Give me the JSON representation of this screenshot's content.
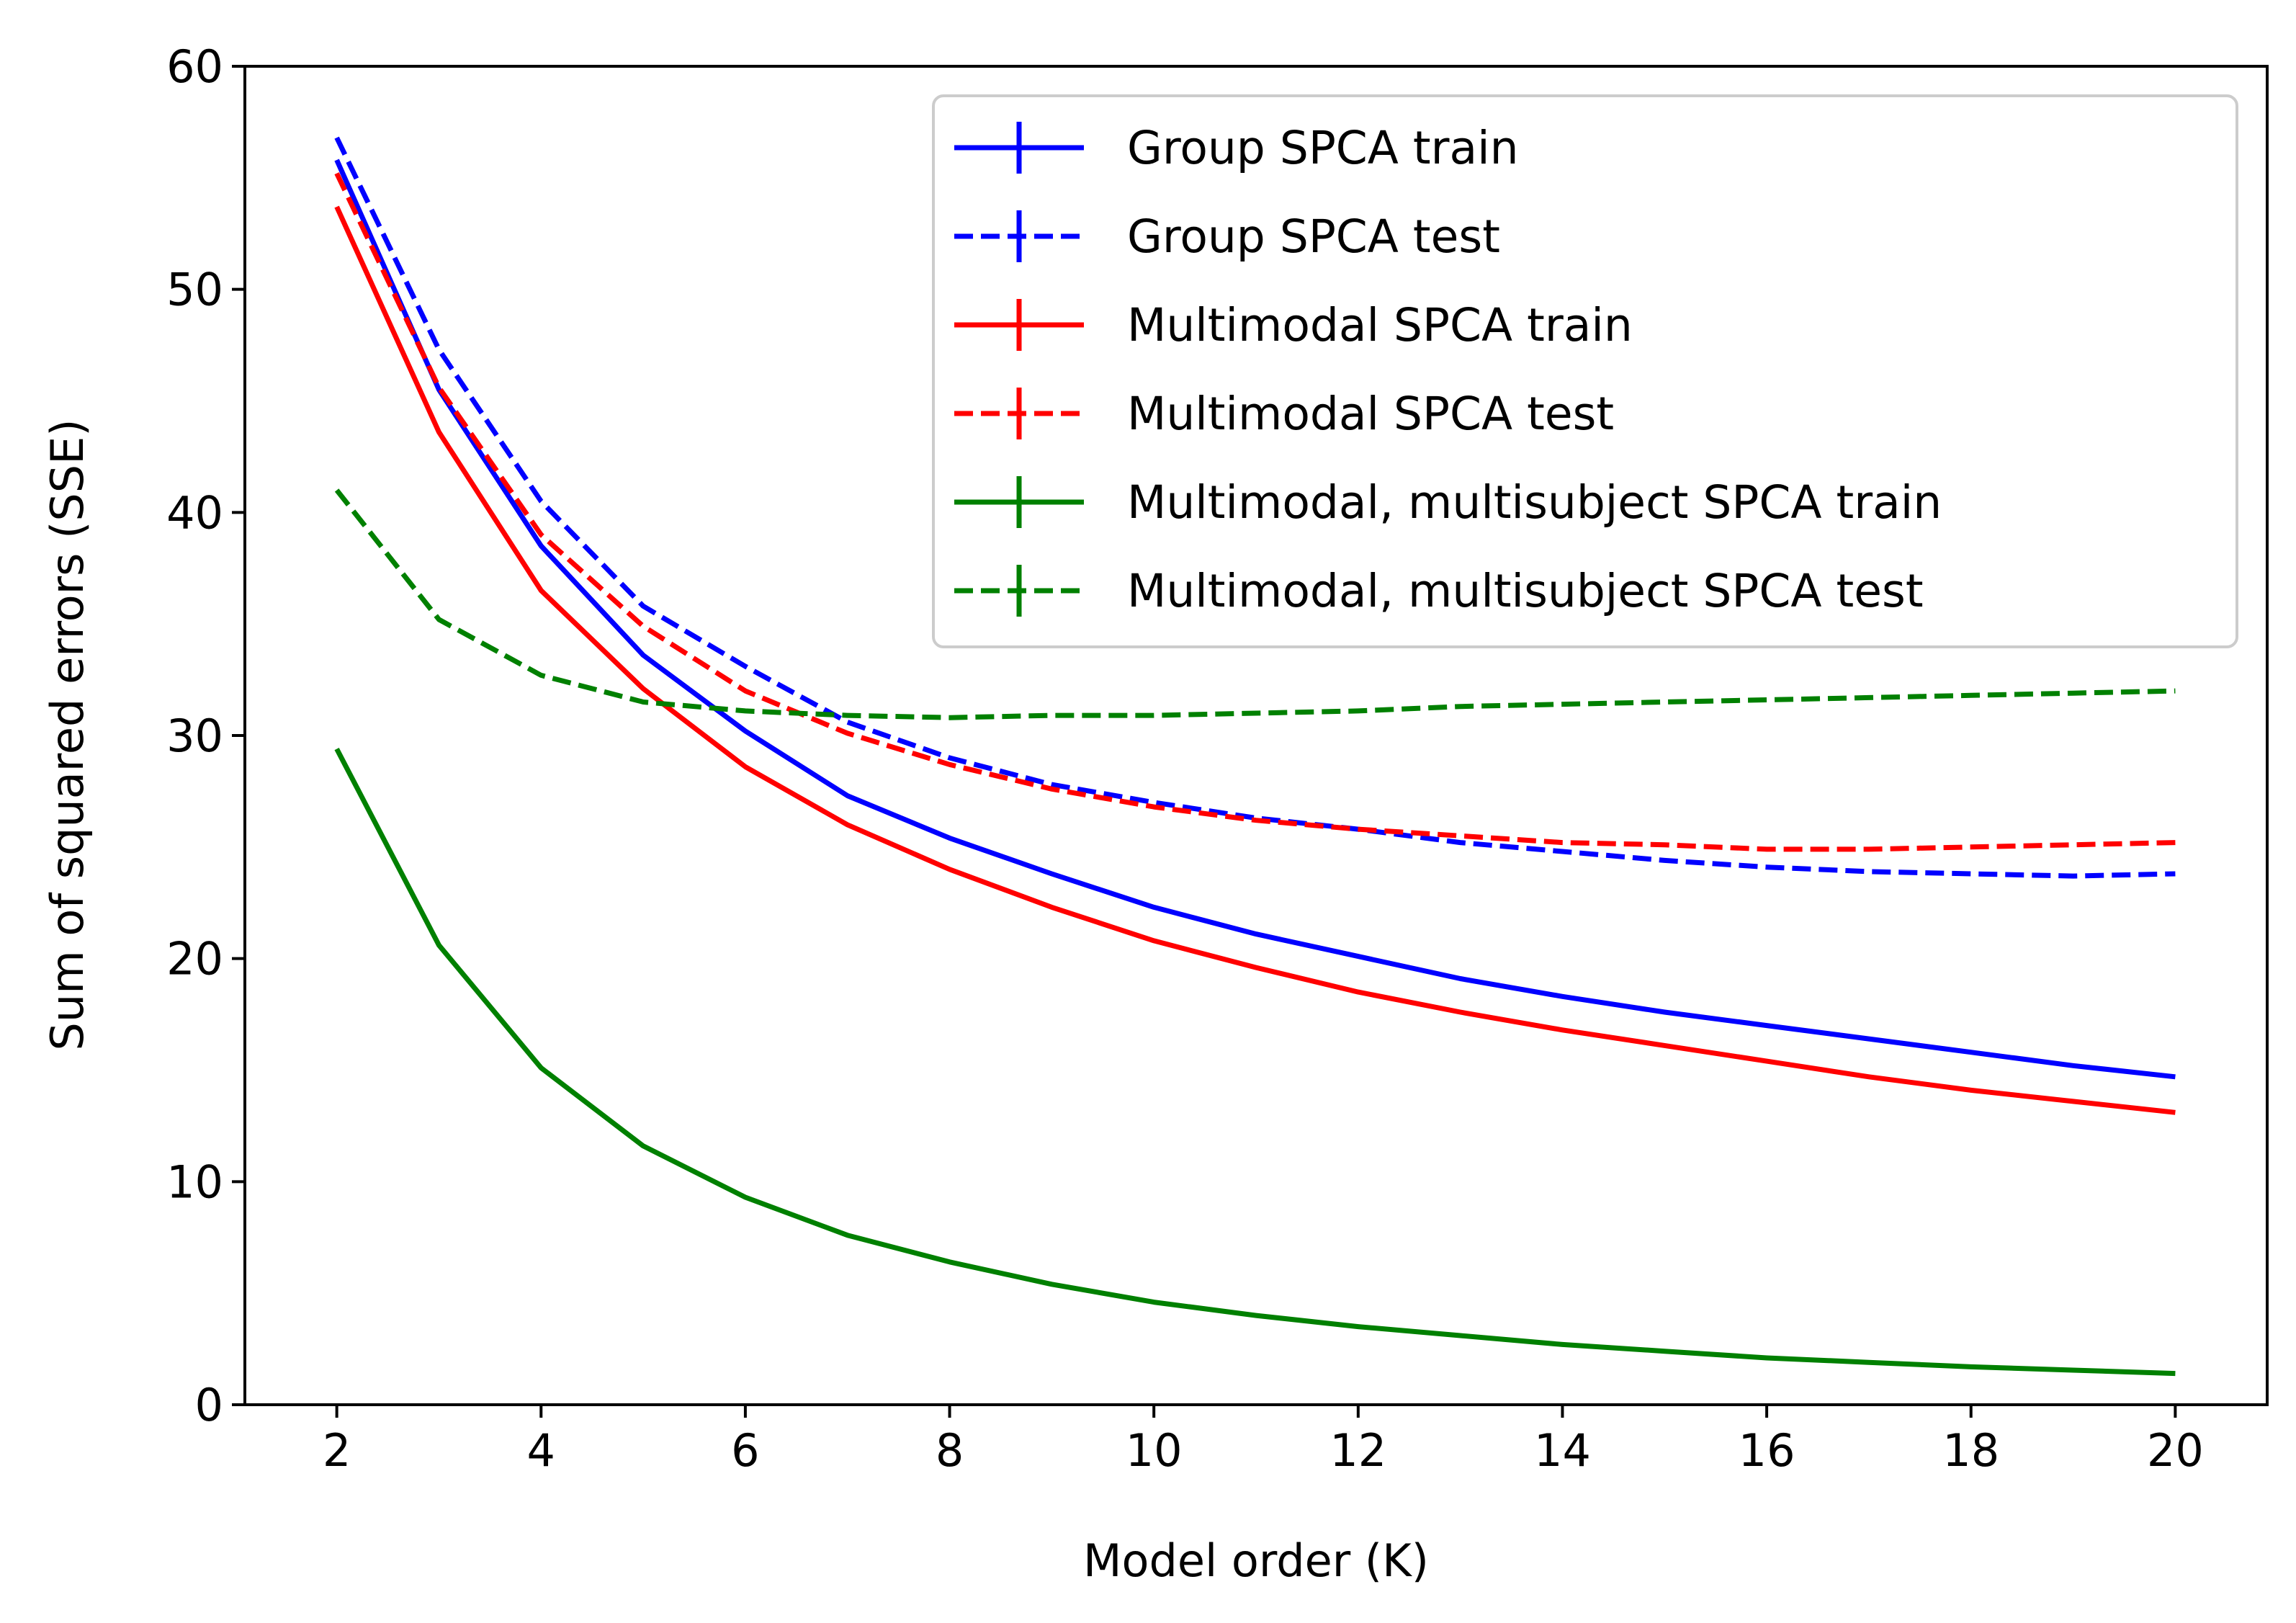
{
  "chart_data": {
    "type": "line",
    "title": "",
    "xlabel": "Model order (K)",
    "ylabel": "Sum of squared errors (SSE)",
    "xlim": [
      1.1,
      20.9
    ],
    "ylim": [
      0,
      60
    ],
    "xticks": [
      2,
      4,
      6,
      8,
      10,
      12,
      14,
      16,
      18,
      20
    ],
    "yticks": [
      0,
      10,
      20,
      30,
      40,
      50,
      60
    ],
    "grid": false,
    "legend_position": "top-right",
    "x": [
      2,
      3,
      4,
      5,
      6,
      7,
      8,
      9,
      10,
      11,
      12,
      13,
      14,
      15,
      16,
      17,
      18,
      19,
      20
    ],
    "series": [
      {
        "name": "Group SPCA train",
        "color": "#0000ff",
        "linestyle": "solid",
        "values": [
          55.8,
          45.5,
          38.5,
          33.6,
          30.2,
          27.3,
          25.4,
          23.8,
          22.3,
          21.1,
          20.1,
          19.1,
          18.3,
          17.6,
          17.0,
          16.4,
          15.8,
          15.2,
          14.7
        ]
      },
      {
        "name": "Group SPCA test",
        "color": "#0000ff",
        "linestyle": "dashed",
        "values": [
          56.8,
          47.3,
          40.5,
          35.8,
          33.1,
          30.6,
          29.0,
          27.8,
          27.0,
          26.3,
          25.8,
          25.2,
          24.8,
          24.4,
          24.1,
          23.9,
          23.8,
          23.7,
          23.8
        ]
      },
      {
        "name": "Multimodal SPCA train",
        "color": "#ff0000",
        "linestyle": "solid",
        "values": [
          53.7,
          43.6,
          36.5,
          32.1,
          28.6,
          26.0,
          24.0,
          22.3,
          20.8,
          19.6,
          18.5,
          17.6,
          16.8,
          16.1,
          15.4,
          14.7,
          14.1,
          13.6,
          13.1
        ]
      },
      {
        "name": "Multimodal SPCA test",
        "color": "#ff0000",
        "linestyle": "dashed",
        "values": [
          55.2,
          45.6,
          39.0,
          34.9,
          32.0,
          30.1,
          28.7,
          27.6,
          26.8,
          26.2,
          25.8,
          25.5,
          25.2,
          25.1,
          24.9,
          24.9,
          25.0,
          25.1,
          25.2
        ]
      },
      {
        "name": "Multimodal, multisubject SPCA train",
        "color": "#008000",
        "linestyle": "solid",
        "values": [
          29.4,
          20.6,
          15.1,
          11.6,
          9.3,
          7.6,
          6.4,
          5.4,
          4.6,
          4.0,
          3.5,
          3.1,
          2.7,
          2.4,
          2.1,
          1.9,
          1.7,
          1.55,
          1.4
        ]
      },
      {
        "name": "Multimodal, multisubject SPCA test",
        "color": "#008000",
        "linestyle": "dashed",
        "values": [
          41.0,
          35.2,
          32.7,
          31.5,
          31.1,
          30.9,
          30.8,
          30.9,
          30.9,
          31.0,
          31.1,
          31.3,
          31.4,
          31.5,
          31.6,
          31.7,
          31.8,
          31.9,
          32.0
        ]
      }
    ]
  }
}
